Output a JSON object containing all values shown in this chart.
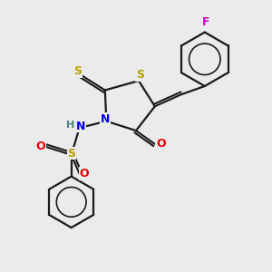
{
  "bg_color": "#ebebeb",
  "bond_color": "#1a1a1a",
  "S_color": "#b8a000",
  "N_color": "#0000ee",
  "O_color": "#ee0000",
  "F_color": "#cc00cc",
  "H_color": "#508080",
  "figsize": [
    3.0,
    3.0
  ],
  "dpi": 100,
  "xlim": [
    0,
    10
  ],
  "ylim": [
    0,
    10
  ]
}
